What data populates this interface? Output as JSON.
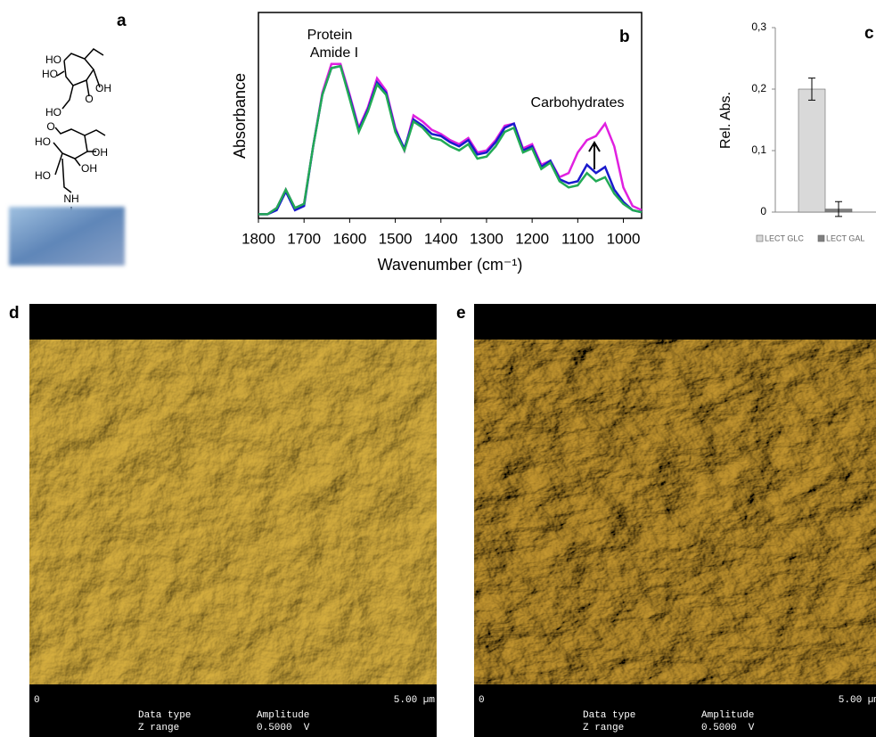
{
  "panel_labels": [
    "a",
    "b",
    "c",
    "d",
    "e"
  ],
  "molecule": {
    "atoms": [
      "HO",
      "HO",
      "OH",
      "O",
      "HO",
      "O",
      "HO",
      "OH",
      "OH",
      "HO",
      "NH"
    ]
  },
  "chart_data": [
    {
      "type": "line",
      "y_label": "Absorbance",
      "x_label": "Wavenumber (cm⁻¹)",
      "annotations": [
        "Protein",
        "Amide I",
        "Carbohydrates"
      ],
      "xlim": [
        1800,
        960
      ],
      "ylim": [
        0,
        1
      ],
      "xticks": [
        1800,
        1700,
        1600,
        1500,
        1400,
        1300,
        1200,
        1100,
        1000
      ],
      "x": [
        1800,
        1780,
        1760,
        1740,
        1720,
        1700,
        1680,
        1660,
        1640,
        1620,
        1600,
        1580,
        1560,
        1540,
        1520,
        1500,
        1480,
        1460,
        1440,
        1420,
        1400,
        1380,
        1360,
        1340,
        1320,
        1300,
        1280,
        1260,
        1240,
        1220,
        1200,
        1180,
        1160,
        1140,
        1120,
        1100,
        1080,
        1060,
        1040,
        1020,
        1000,
        980,
        960
      ],
      "series": [
        {
          "color": "#e020e0",
          "values": [
            0.02,
            0.02,
            0.05,
            0.14,
            0.05,
            0.07,
            0.35,
            0.61,
            0.75,
            0.75,
            0.6,
            0.44,
            0.54,
            0.68,
            0.62,
            0.44,
            0.33,
            0.5,
            0.47,
            0.43,
            0.41,
            0.38,
            0.36,
            0.39,
            0.32,
            0.33,
            0.38,
            0.45,
            0.46,
            0.34,
            0.36,
            0.26,
            0.28,
            0.2,
            0.22,
            0.32,
            0.38,
            0.4,
            0.46,
            0.35,
            0.15,
            0.06,
            0.04
          ]
        },
        {
          "color": "#1a1acc",
          "values": [
            0.02,
            0.02,
            0.04,
            0.13,
            0.04,
            0.06,
            0.35,
            0.6,
            0.73,
            0.74,
            0.59,
            0.43,
            0.53,
            0.66,
            0.61,
            0.43,
            0.34,
            0.48,
            0.45,
            0.41,
            0.4,
            0.37,
            0.35,
            0.38,
            0.31,
            0.32,
            0.37,
            0.44,
            0.46,
            0.33,
            0.35,
            0.25,
            0.28,
            0.19,
            0.17,
            0.18,
            0.26,
            0.22,
            0.25,
            0.14,
            0.08,
            0.04,
            0.03
          ]
        },
        {
          "color": "#22aa55",
          "values": [
            0.02,
            0.02,
            0.05,
            0.14,
            0.05,
            0.07,
            0.35,
            0.6,
            0.73,
            0.74,
            0.58,
            0.42,
            0.52,
            0.65,
            0.6,
            0.42,
            0.33,
            0.47,
            0.44,
            0.39,
            0.38,
            0.35,
            0.33,
            0.36,
            0.29,
            0.3,
            0.35,
            0.42,
            0.44,
            0.32,
            0.34,
            0.24,
            0.27,
            0.18,
            0.15,
            0.16,
            0.22,
            0.18,
            0.2,
            0.12,
            0.07,
            0.04,
            0.03
          ]
        }
      ]
    },
    {
      "type": "bar",
      "y_label": "Rel. Abs.",
      "categories": [
        "LECT GLC",
        "LECT GAL"
      ],
      "values": [
        0.2,
        0.005
      ],
      "errors": [
        0.018,
        0.012
      ],
      "colors": [
        "#d9d9d9",
        "#7f7f7f"
      ],
      "ylim": [
        0,
        0.3
      ],
      "yticks": [
        {
          "value": 0,
          "label": "0"
        },
        {
          "value": 0.1,
          "label": "0,1"
        },
        {
          "value": 0.2,
          "label": "0,2"
        },
        {
          "value": 0.3,
          "label": "0,3"
        }
      ]
    }
  ],
  "afm_panels": [
    {
      "scale_start": "0",
      "scale_end": "5.00 µm",
      "fields": [
        [
          "Data type",
          "Amplitude"
        ],
        [
          "Z range",
          "0.5000  V"
        ]
      ]
    },
    {
      "scale_start": "0",
      "scale_end": "5.00 µm",
      "fields": [
        [
          "Data type",
          "Amplitude"
        ],
        [
          "Z range",
          "0.5000  V"
        ]
      ]
    }
  ]
}
